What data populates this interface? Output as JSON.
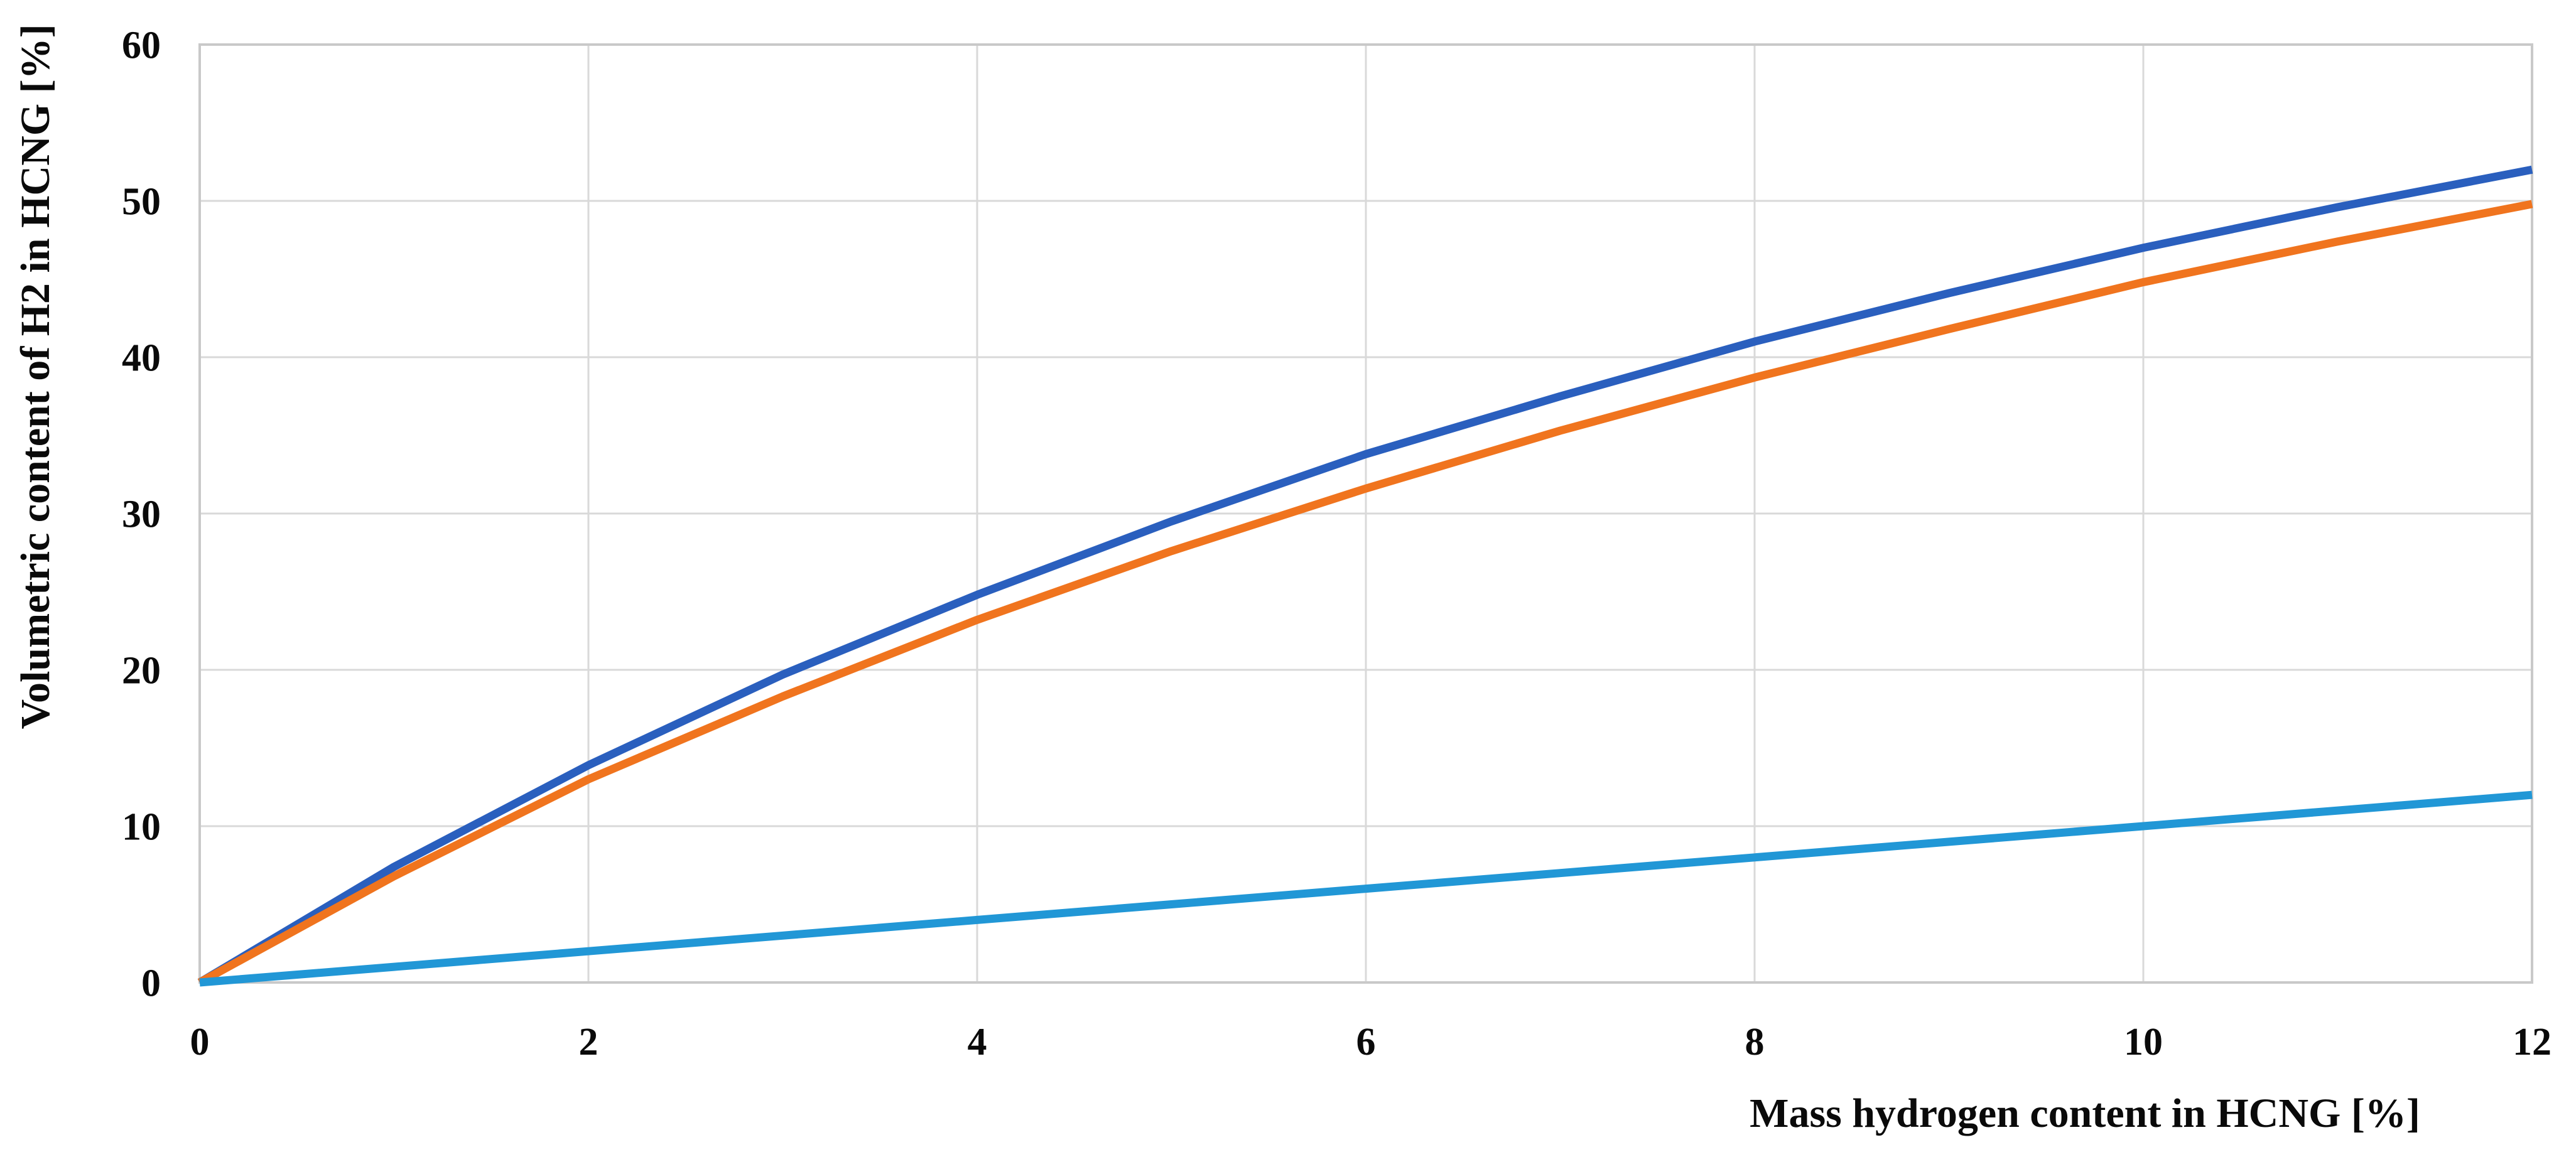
{
  "colors": {
    "background": "#FFFFFF",
    "gridline": "#D9D9D9",
    "plot_border": "#C9C9C9",
    "text": "#0A0A0A"
  },
  "chart_data": {
    "type": "line",
    "title": "",
    "xlabel": "Mass hydrogen content in HCNG [%]",
    "ylabel": "Volumetric content of H2 in HCNG [%]",
    "xlim": [
      0,
      12
    ],
    "ylim": [
      0,
      60
    ],
    "x_ticks": [
      0,
      2,
      4,
      6,
      8,
      10,
      12
    ],
    "y_ticks": [
      0,
      10,
      20,
      30,
      40,
      50,
      60
    ],
    "grid": true,
    "legend_position": "none",
    "x": [
      0,
      1,
      2,
      3,
      4,
      5,
      6,
      7,
      8,
      9,
      10,
      11,
      12
    ],
    "series": [
      {
        "name": "dark-blue-curve",
        "color": "#2A5FBE",
        "values": [
          0,
          7.4,
          13.9,
          19.7,
          24.8,
          29.5,
          33.8,
          37.5,
          41.0,
          44.1,
          47.0,
          49.6,
          52.0
        ]
      },
      {
        "name": "orange-curve",
        "color": "#F0741E",
        "values": [
          0,
          6.8,
          13.0,
          18.3,
          23.2,
          27.6,
          31.6,
          35.3,
          38.7,
          41.8,
          44.8,
          47.4,
          49.8
        ]
      },
      {
        "name": "light-blue-line",
        "color": "#2197D6",
        "values": [
          0,
          1,
          2,
          3,
          4,
          5,
          6,
          7,
          8,
          9,
          10,
          11,
          12
        ]
      }
    ]
  }
}
